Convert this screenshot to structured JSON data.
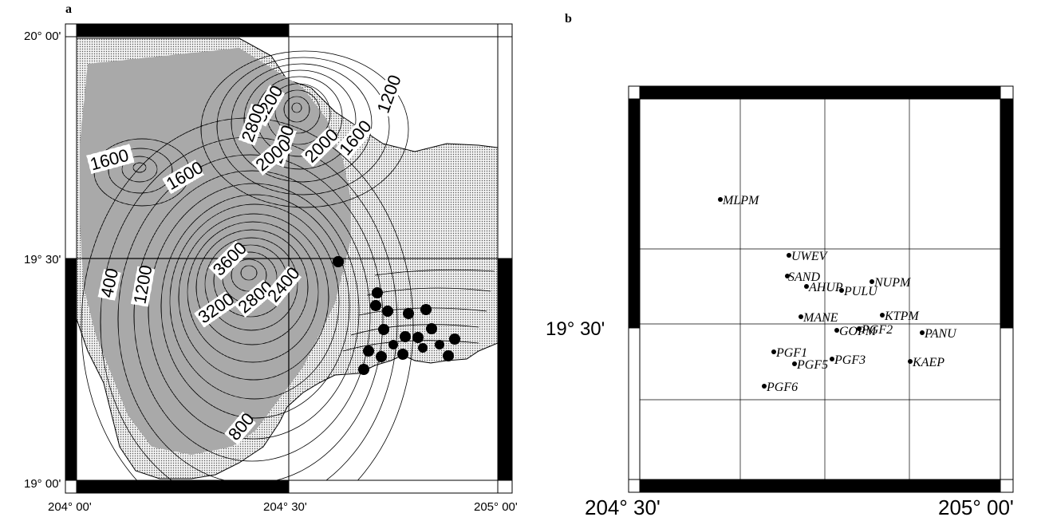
{
  "panel_a": {
    "letter": "a",
    "ticks": {
      "lat_top": "20° 00'",
      "lat_mid": "19° 30'",
      "lat_bottom": "19° 00'",
      "lon_left": "204° 00'",
      "lon_mid": "204° 30'",
      "lon_right": "205° 00'"
    },
    "contour_labels": [
      {
        "text": "3200"
      },
      {
        "text": "2800"
      },
      {
        "text": "2400"
      },
      {
        "text": "2000"
      },
      {
        "text": "1600"
      },
      {
        "text": "1200"
      },
      {
        "text": "1600"
      },
      {
        "text": "1600"
      },
      {
        "text": "2000"
      },
      {
        "text": "3600"
      },
      {
        "text": "3200"
      },
      {
        "text": "2800"
      },
      {
        "text": "2400"
      },
      {
        "text": "400"
      },
      {
        "text": "1200"
      },
      {
        "text": "800"
      }
    ],
    "station_count": 19
  },
  "panel_b": {
    "letter": "b",
    "ticks": {
      "lat_mid": "19° 30'",
      "lon_left": "204° 30'",
      "lon_right": "205° 00'"
    },
    "stations": [
      {
        "name": "MLPM"
      },
      {
        "name": "UWEV"
      },
      {
        "name": "SAND"
      },
      {
        "name": "AHUP"
      },
      {
        "name": "PULU"
      },
      {
        "name": "NUPM"
      },
      {
        "name": "MANE"
      },
      {
        "name": "KTPM"
      },
      {
        "name": "GOPM"
      },
      {
        "name": "PGF2"
      },
      {
        "name": "PANU"
      },
      {
        "name": "PGF1"
      },
      {
        "name": "PGF5"
      },
      {
        "name": "PGF3"
      },
      {
        "name": "KAEP"
      },
      {
        "name": "PGF6"
      }
    ]
  }
}
